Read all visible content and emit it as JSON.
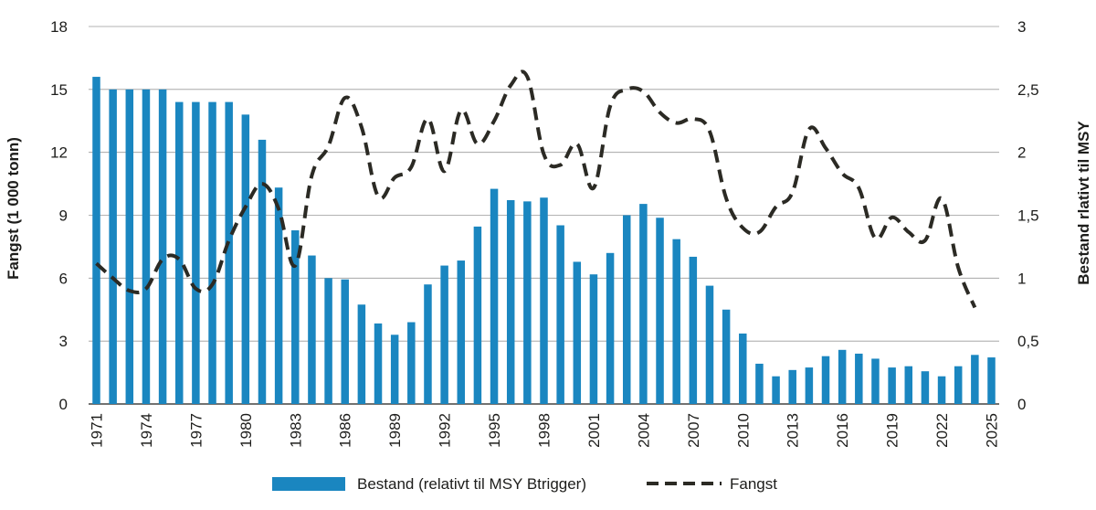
{
  "chart_data": {
    "type": "bar+line",
    "years": [
      1971,
      1972,
      1973,
      1974,
      1975,
      1976,
      1977,
      1978,
      1979,
      1980,
      1981,
      1982,
      1983,
      1984,
      1985,
      1986,
      1987,
      1988,
      1989,
      1990,
      1991,
      1992,
      1993,
      1994,
      1995,
      1996,
      1997,
      1998,
      1999,
      2000,
      2001,
      2002,
      2003,
      2004,
      2005,
      2006,
      2007,
      2008,
      2009,
      2010,
      2011,
      2012,
      2013,
      2014,
      2015,
      2016,
      2017,
      2018,
      2019,
      2020,
      2021,
      2022,
      2023,
      2024,
      2025
    ],
    "x_tick_labels": [
      "1971",
      "1974",
      "1977",
      "1980",
      "1983",
      "1986",
      "1989",
      "1992",
      "1995",
      "1998",
      "2001",
      "2004",
      "2007",
      "2010",
      "2013",
      "2016",
      "2019",
      "2022",
      "2025"
    ],
    "left_axis": {
      "label": "Fangst  (1 000 tonn)",
      "ticks": [
        "0",
        "3",
        "6",
        "9",
        "12",
        "15",
        "18"
      ],
      "range": [
        0,
        18
      ]
    },
    "right_axis": {
      "label": "Bestand rlativt til MSY",
      "ticks": [
        "0",
        "0,5",
        "1",
        "1,5",
        "2",
        "2,5",
        "3"
      ],
      "range": [
        0,
        3
      ]
    },
    "series": [
      {
        "name": "Bestand (relativt til MSY Btrigger)",
        "type": "bar",
        "axis": "right",
        "color": "#1a86c0",
        "values": [
          2.6,
          2.5,
          2.5,
          2.5,
          2.5,
          2.4,
          2.4,
          2.4,
          2.4,
          2.3,
          2.1,
          1.72,
          1.38,
          1.18,
          1.0,
          0.99,
          0.79,
          0.64,
          0.55,
          0.65,
          0.95,
          1.1,
          1.14,
          1.41,
          1.71,
          1.62,
          1.61,
          1.64,
          1.42,
          1.13,
          1.03,
          1.2,
          1.5,
          1.59,
          1.48,
          1.31,
          1.17,
          0.94,
          0.75,
          0.56,
          0.32,
          0.22,
          0.27,
          0.29,
          0.38,
          0.43,
          0.4,
          0.36,
          0.29,
          0.3,
          0.26,
          0.22,
          0.3,
          0.39,
          0.37
        ]
      },
      {
        "name": "Fangst",
        "type": "line",
        "axis": "left",
        "style": "dashed",
        "color": "#2b2a24",
        "values": [
          6.7,
          6.0,
          5.4,
          5.5,
          6.9,
          6.9,
          5.5,
          5.7,
          7.8,
          9.4,
          10.5,
          9.3,
          6.6,
          10.9,
          12.3,
          14.6,
          13.2,
          9.9,
          10.8,
          11.3,
          13.6,
          11.1,
          14.0,
          12.4,
          13.5,
          15.2,
          15.6,
          11.9,
          11.4,
          12.4,
          10.3,
          14.2,
          15.0,
          14.9,
          13.9,
          13.4,
          13.6,
          13.0,
          9.8,
          8.4,
          8.2,
          9.4,
          10.1,
          13.1,
          12.2,
          11.0,
          10.3,
          7.9,
          8.9,
          8.2,
          7.8,
          9.8,
          6.5,
          4.6,
          null
        ]
      }
    ],
    "legend": {
      "position": "bottom",
      "items": [
        "Bestand (relativt til MSY Btrigger)",
        "Fangst"
      ]
    },
    "grid": true
  }
}
